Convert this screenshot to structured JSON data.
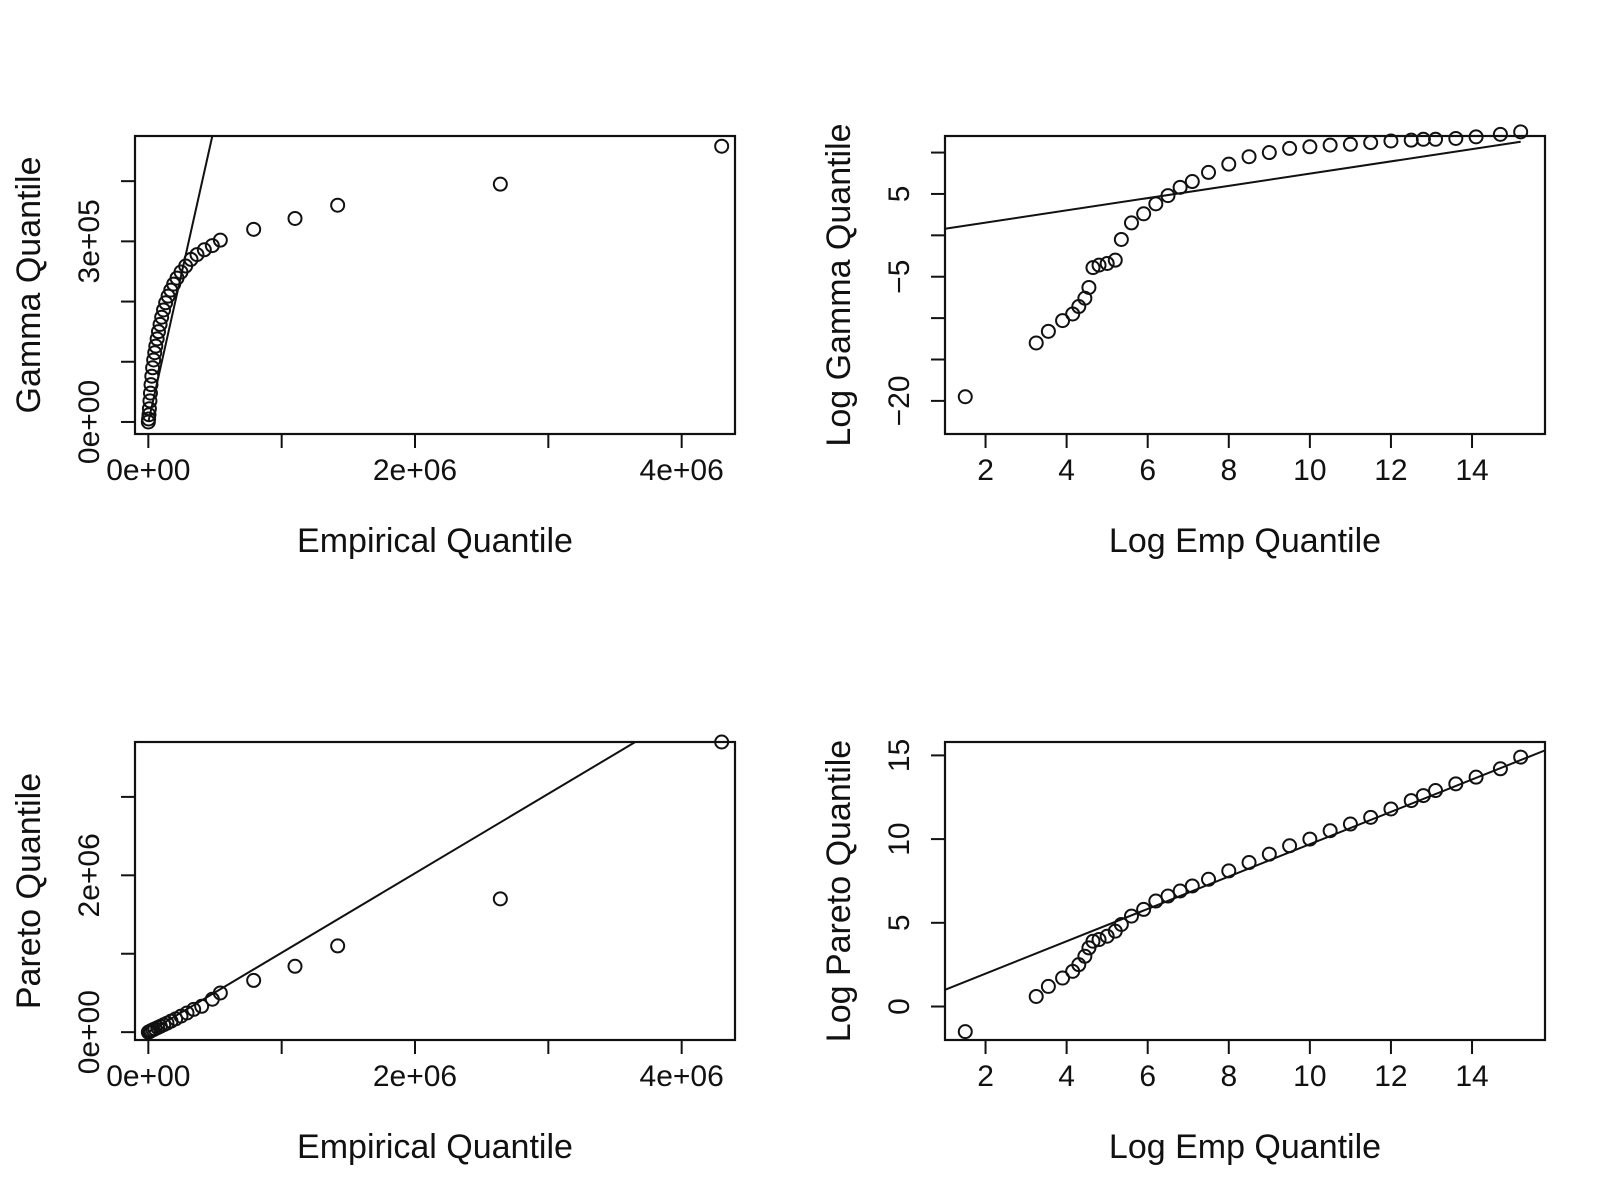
{
  "figure": {
    "panel_count": 4
  },
  "chart_data": [
    {
      "type": "scatter",
      "panel": "top-left",
      "xlabel": "Empirical Quantile",
      "ylabel": "Gamma Quantile",
      "xlim": [
        -100000,
        4400000
      ],
      "ylim": [
        -20000,
        475000
      ],
      "xticks": [
        {
          "value": 0,
          "label": "0e+00"
        },
        {
          "value": 1000000,
          "label": ""
        },
        {
          "value": 2000000,
          "label": "2e+06"
        },
        {
          "value": 3000000,
          "label": ""
        },
        {
          "value": 4000000,
          "label": "4e+06"
        }
      ],
      "yticks": [
        {
          "value": 0,
          "label": "0e+00"
        },
        {
          "value": 100000,
          "label": ""
        },
        {
          "value": 200000,
          "label": ""
        },
        {
          "value": 300000,
          "label": "3e+05"
        },
        {
          "value": 400000,
          "label": ""
        }
      ],
      "points": {
        "x": [
          0,
          2000,
          5000,
          8000,
          12000,
          16000,
          20000,
          26000,
          32000,
          40000,
          48000,
          56000,
          66000,
          76000,
          88000,
          100000,
          114000,
          130000,
          148000,
          168000,
          190000,
          215000,
          245000,
          280000,
          320000,
          365000,
          420000,
          480000,
          540000,
          790000,
          1100000,
          1420000,
          2640000,
          4300000
        ],
        "y": [
          0,
          5000,
          12000,
          22000,
          35000,
          48000,
          62000,
          76000,
          90000,
          103000,
          115000,
          126000,
          138000,
          150000,
          162000,
          174000,
          186000,
          198000,
          209000,
          219000,
          229000,
          239000,
          249000,
          259000,
          270000,
          278000,
          286000,
          293000,
          302000,
          320000,
          338000,
          360000,
          395000,
          458000
        ]
      },
      "reference_line": {
        "x": [
          0,
          480000
        ],
        "y": [
          0,
          475000
        ]
      }
    },
    {
      "type": "scatter",
      "panel": "top-right",
      "xlabel": "Log Emp Quantile",
      "ylabel": "Log Gamma Quantile",
      "xlim": [
        1,
        15.8
      ],
      "ylim": [
        -24,
        12
      ],
      "xticks": [
        {
          "value": 2,
          "label": "2"
        },
        {
          "value": 4,
          "label": "4"
        },
        {
          "value": 6,
          "label": "6"
        },
        {
          "value": 8,
          "label": "8"
        },
        {
          "value": 10,
          "label": "10"
        },
        {
          "value": 12,
          "label": "12"
        },
        {
          "value": 14,
          "label": "14"
        }
      ],
      "yticks": [
        {
          "value": -20,
          "label": "−20"
        },
        {
          "value": -15,
          "label": ""
        },
        {
          "value": -10,
          "label": ""
        },
        {
          "value": -5,
          "label": "−5"
        },
        {
          "value": 0,
          "label": ""
        },
        {
          "value": 5,
          "label": "5"
        },
        {
          "value": 10,
          "label": ""
        }
      ],
      "points": {
        "x": [
          1.5,
          3.25,
          3.55,
          3.9,
          4.15,
          4.3,
          4.45,
          4.55,
          4.65,
          4.8,
          5.0,
          5.2,
          5.35,
          5.6,
          5.9,
          6.2,
          6.5,
          6.8,
          7.1,
          7.5,
          8.0,
          8.5,
          9.0,
          9.5,
          10.0,
          10.5,
          11.0,
          11.5,
          12.0,
          12.5,
          12.8,
          13.1,
          13.6,
          14.1,
          14.7,
          15.2
        ],
        "y": [
          -19.5,
          -13,
          -11.6,
          -10.3,
          -9.5,
          -8.6,
          -7.6,
          -6.3,
          -3.9,
          -3.6,
          -3.4,
          -3.0,
          -0.5,
          1.5,
          2.6,
          3.8,
          4.8,
          5.8,
          6.5,
          7.6,
          8.6,
          9.5,
          10.0,
          10.5,
          10.7,
          10.9,
          11.0,
          11.2,
          11.4,
          11.5,
          11.6,
          11.6,
          11.7,
          11.9,
          12.2,
          12.5
        ]
      },
      "reference_line": {
        "x": [
          1,
          15.2
        ],
        "y": [
          0.8,
          11.3
        ]
      }
    },
    {
      "type": "scatter",
      "panel": "bottom-left",
      "xlabel": "Empirical Quantile",
      "ylabel": "Pareto Quantile",
      "xlim": [
        -100000,
        4400000
      ],
      "ylim": [
        -100000,
        3700000
      ],
      "xticks": [
        {
          "value": 0,
          "label": "0e+00"
        },
        {
          "value": 1000000,
          "label": ""
        },
        {
          "value": 2000000,
          "label": "2e+06"
        },
        {
          "value": 3000000,
          "label": ""
        },
        {
          "value": 4000000,
          "label": "4e+06"
        }
      ],
      "yticks": [
        {
          "value": 0,
          "label": "0e+00"
        },
        {
          "value": 1000000,
          "label": ""
        },
        {
          "value": 2000000,
          "label": "2e+06"
        },
        {
          "value": 3000000,
          "label": ""
        }
      ],
      "points": {
        "x": [
          0,
          10000,
          20000,
          35000,
          50000,
          70000,
          90000,
          115000,
          140000,
          170000,
          205000,
          245000,
          290000,
          340000,
          400000,
          480000,
          540000,
          790000,
          1100000,
          1420000,
          2640000,
          4300000
        ],
        "y": [
          0,
          8000,
          18000,
          30000,
          42000,
          58000,
          74000,
          95000,
          115000,
          140000,
          170000,
          205000,
          245000,
          290000,
          330000,
          420000,
          500000,
          660000,
          840000,
          1100000,
          1700000,
          3700000
        ]
      },
      "reference_line": {
        "x": [
          0,
          3800000
        ],
        "y": [
          0,
          3850000
        ]
      }
    },
    {
      "type": "scatter",
      "panel": "bottom-right",
      "xlabel": "Log Emp Quantile",
      "ylabel": "Log Pareto Quantile",
      "xlim": [
        1,
        15.8
      ],
      "ylim": [
        -2,
        15.8
      ],
      "xticks": [
        {
          "value": 2,
          "label": "2"
        },
        {
          "value": 4,
          "label": "4"
        },
        {
          "value": 6,
          "label": "6"
        },
        {
          "value": 8,
          "label": "8"
        },
        {
          "value": 10,
          "label": "10"
        },
        {
          "value": 12,
          "label": "12"
        },
        {
          "value": 14,
          "label": "14"
        }
      ],
      "yticks": [
        {
          "value": 0,
          "label": "0"
        },
        {
          "value": 5,
          "label": "5"
        },
        {
          "value": 10,
          "label": "10"
        },
        {
          "value": 15,
          "label": "15"
        }
      ],
      "points": {
        "x": [
          1.5,
          3.25,
          3.55,
          3.9,
          4.15,
          4.3,
          4.45,
          4.55,
          4.65,
          4.8,
          5.0,
          5.2,
          5.35,
          5.6,
          5.9,
          6.2,
          6.5,
          6.8,
          7.1,
          7.5,
          8.0,
          8.5,
          9.0,
          9.5,
          10.0,
          10.5,
          11.0,
          11.5,
          12.0,
          12.5,
          12.8,
          13.1,
          13.6,
          14.1,
          14.7,
          15.2
        ],
        "y": [
          -1.5,
          0.6,
          1.2,
          1.7,
          2.1,
          2.5,
          3.0,
          3.5,
          3.9,
          4.0,
          4.2,
          4.5,
          4.9,
          5.4,
          5.8,
          6.3,
          6.6,
          6.9,
          7.2,
          7.6,
          8.1,
          8.6,
          9.1,
          9.6,
          10.0,
          10.5,
          10.9,
          11.3,
          11.8,
          12.3,
          12.6,
          12.9,
          13.3,
          13.7,
          14.2,
          14.9
        ]
      },
      "reference_line": {
        "x": [
          1,
          15.8
        ],
        "y": [
          1.0,
          15.3
        ]
      }
    }
  ]
}
